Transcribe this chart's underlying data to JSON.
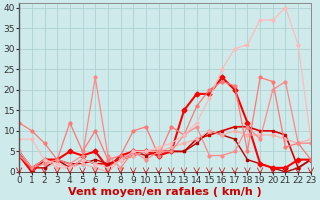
{
  "xlabel": "Vent moyen/en rafales ( km/h )",
  "xlim": [
    0,
    23
  ],
  "ylim": [
    0,
    41
  ],
  "xticks": [
    0,
    1,
    2,
    3,
    4,
    5,
    6,
    7,
    8,
    9,
    10,
    11,
    12,
    13,
    14,
    15,
    16,
    17,
    18,
    19,
    20,
    21,
    22,
    23
  ],
  "yticks": [
    0,
    5,
    10,
    15,
    20,
    25,
    30,
    35,
    40
  ],
  "background_color": "#ceeaea",
  "grid_color": "#aacccc",
  "series": [
    {
      "x": [
        0,
        1,
        2,
        3,
        4,
        5,
        6,
        7,
        8,
        9,
        10,
        11,
        12,
        13,
        14,
        15,
        16,
        17,
        18,
        19,
        20,
        21,
        22,
        23
      ],
      "y": [
        4,
        1,
        3,
        3,
        1,
        3,
        2,
        2,
        3,
        4,
        5,
        5,
        5,
        5,
        8,
        9,
        10,
        11,
        11,
        10,
        10,
        9,
        1,
        3
      ],
      "color": "#dd0000",
      "lw": 1.2,
      "marker": "s",
      "ms": 2.0
    },
    {
      "x": [
        0,
        1,
        2,
        3,
        4,
        5,
        6,
        7,
        8,
        9,
        10,
        11,
        12,
        13,
        14,
        15,
        16,
        17,
        18,
        19,
        20,
        21,
        22,
        23
      ],
      "y": [
        5,
        1,
        1,
        3,
        2,
        2,
        3,
        2,
        3,
        5,
        4,
        5,
        5,
        5,
        7,
        10,
        9,
        8,
        3,
        2,
        1,
        0,
        1,
        3
      ],
      "color": "#bb0000",
      "lw": 1.0,
      "marker": "s",
      "ms": 2.0
    },
    {
      "x": [
        0,
        1,
        2,
        3,
        4,
        5,
        6,
        7,
        8,
        9,
        10,
        11,
        12,
        13,
        14,
        15,
        16,
        17,
        18,
        19,
        20,
        21,
        22,
        23
      ],
      "y": [
        4,
        0,
        3,
        3,
        5,
        4,
        5,
        1,
        4,
        5,
        5,
        4,
        5,
        15,
        19,
        19,
        23,
        20,
        12,
        2,
        1,
        1,
        3,
        3
      ],
      "color": "#ff0000",
      "lw": 1.5,
      "marker": "D",
      "ms": 2.5
    },
    {
      "x": [
        0,
        1,
        2,
        3,
        4,
        5,
        6,
        7,
        8,
        9,
        10,
        11,
        12,
        13,
        14,
        15,
        16,
        17,
        18,
        19,
        20,
        21,
        22,
        23
      ],
      "y": [
        5,
        1,
        3,
        1,
        1,
        2,
        1,
        0,
        3,
        4,
        5,
        5,
        6,
        7,
        8,
        10,
        9,
        10,
        9,
        9,
        9,
        8,
        7,
        8
      ],
      "color": "#ffaaaa",
      "lw": 0.8,
      "marker": "o",
      "ms": 2.0
    },
    {
      "x": [
        0,
        1,
        2,
        3,
        4,
        5,
        6,
        7,
        8,
        9,
        10,
        11,
        12,
        13,
        14,
        15,
        16,
        17,
        18,
        19,
        20,
        21,
        22,
        23
      ],
      "y": [
        12,
        10,
        7,
        3,
        12,
        5,
        10,
        3,
        4,
        10,
        11,
        4,
        11,
        9,
        16,
        20,
        22,
        21,
        5,
        23,
        22,
        6,
        7,
        3
      ],
      "color": "#ff7777",
      "lw": 0.9,
      "marker": "o",
      "ms": 2.0
    },
    {
      "x": [
        0,
        1,
        2,
        3,
        4,
        5,
        6,
        7,
        8,
        9,
        10,
        11,
        12,
        13,
        14,
        15,
        16,
        17,
        18,
        19,
        20,
        21,
        22,
        23
      ],
      "y": [
        4,
        1,
        2,
        3,
        2,
        4,
        23,
        4,
        1,
        5,
        3,
        5,
        5,
        9,
        11,
        4,
        4,
        5,
        11,
        8,
        20,
        22,
        7,
        7
      ],
      "color": "#ff8888",
      "lw": 0.9,
      "marker": "o",
      "ms": 2.0
    },
    {
      "x": [
        0,
        1,
        2,
        3,
        4,
        5,
        6,
        7,
        8,
        9,
        10,
        11,
        12,
        13,
        14,
        15,
        16,
        17,
        18,
        19,
        20,
        21,
        22,
        23
      ],
      "y": [
        8,
        8,
        3,
        2,
        1,
        3,
        2,
        1,
        3,
        5,
        5,
        6,
        7,
        9,
        12,
        18,
        25,
        30,
        31,
        37,
        37,
        40,
        31,
        8
      ],
      "color": "#ffbbbb",
      "lw": 0.9,
      "marker": "o",
      "ms": 2.0
    }
  ],
  "xlabel_fontsize": 8,
  "tick_fontsize": 6.5
}
